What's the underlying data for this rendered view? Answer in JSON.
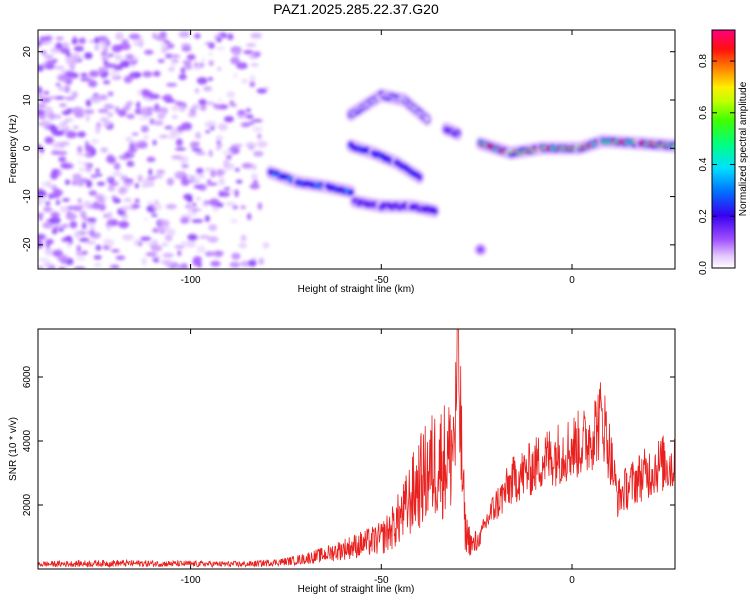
{
  "title": "PAZ1.2025.285.22.37.G20",
  "chart_data": [
    {
      "type": "heatmap",
      "xlabel": "Height of straight line (km)",
      "ylabel": "Frequency (Hz)",
      "xlim": [
        -140,
        27
      ],
      "ylim": [
        -25,
        24.5
      ],
      "xticks": [
        -100,
        -50,
        0
      ],
      "yticks": [
        -20,
        -10,
        0,
        10,
        20
      ],
      "colorbar": {
        "label": "Normalized spectral amplitude",
        "range": [
          0,
          0.92
        ],
        "ticks": [
          "0.0",
          "0.2",
          "0.4",
          "0.6",
          "0.8"
        ],
        "colormap": "rainbow (white-purple-blue-cyan-green-yellow-red-magenta)"
      },
      "features": [
        {
          "name": "noise",
          "x_range": [
            -140,
            -80
          ],
          "freq_range": [
            -25,
            24
          ],
          "amplitude": 0.08
        },
        {
          "name": "lower band",
          "points": [
            [
              -79,
              -5
            ],
            [
              -72,
              -7
            ],
            [
              -64,
              -8
            ],
            [
              -58,
              -9
            ]
          ],
          "amplitude": 0.3
        },
        {
          "name": "lower tail",
          "points": [
            [
              -57,
              -11
            ],
            [
              -50,
              -12
            ],
            [
              -42,
              -12
            ],
            [
              -36,
              -13
            ]
          ],
          "amplitude": 0.15
        },
        {
          "name": "middle band",
          "points": [
            [
              -58,
              0.5
            ],
            [
              -52,
              -1
            ],
            [
              -46,
              -3
            ],
            [
              -40,
              -6
            ]
          ],
          "amplitude": 0.25
        },
        {
          "name": "upper faint",
          "points": [
            [
              -58,
              7
            ],
            [
              -50,
              11
            ],
            [
              -44,
              10
            ],
            [
              -38,
              6
            ]
          ],
          "amplitude": 0.05
        },
        {
          "name": "small blob",
          "points": [
            [
              -33,
              4
            ],
            [
              -30,
              3
            ]
          ],
          "amplitude": 0.12
        },
        {
          "name": "right band",
          "points": [
            [
              -24,
              1
            ],
            [
              -16,
              -1
            ],
            [
              -8,
              0
            ],
            [
              2,
              0
            ],
            [
              8,
              1.5
            ],
            [
              18,
              1
            ],
            [
              27,
              0.5
            ]
          ],
          "amplitude": 0.75
        },
        {
          "name": "isolated spot",
          "points": [
            [
              -24,
              -21
            ]
          ],
          "amplitude": 0.12
        }
      ]
    },
    {
      "type": "line",
      "xlabel": "Height of straight line (km)",
      "ylabel": "SNR (10 * v/v)",
      "xlim": [
        -140,
        27
      ],
      "ylim": [
        0,
        7500
      ],
      "xticks": [
        -100,
        -50,
        0
      ],
      "yticks": [
        2000,
        4000,
        6000
      ],
      "series": [
        {
          "color": "#e8201e",
          "x": [
            -140,
            -120,
            -100,
            -85,
            -75,
            -70,
            -65,
            -60,
            -55,
            -50,
            -47,
            -44,
            -42,
            -40,
            -38,
            -36,
            -34,
            -32,
            -30.5,
            -30,
            -29,
            -28,
            -26,
            -24,
            -22,
            -20,
            -18,
            -16,
            -14,
            -12,
            -10,
            -8,
            -6,
            -4,
            -2,
            0,
            2,
            4,
            6,
            8,
            10,
            12,
            14,
            16,
            18,
            20,
            22,
            24,
            27
          ],
          "y": [
            150,
            180,
            160,
            150,
            230,
            320,
            450,
            620,
            780,
            950,
            1300,
            1800,
            2300,
            2700,
            3000,
            3300,
            3400,
            3500,
            4500,
            7300,
            3600,
            1200,
            700,
            1000,
            1600,
            2000,
            2300,
            2700,
            2900,
            3000,
            3200,
            3400,
            3500,
            3600,
            3700,
            3800,
            3900,
            4000,
            4400,
            4800,
            3600,
            2200,
            2500,
            2700,
            2900,
            3000,
            3200,
            3300,
            3200
          ]
        }
      ]
    }
  ]
}
